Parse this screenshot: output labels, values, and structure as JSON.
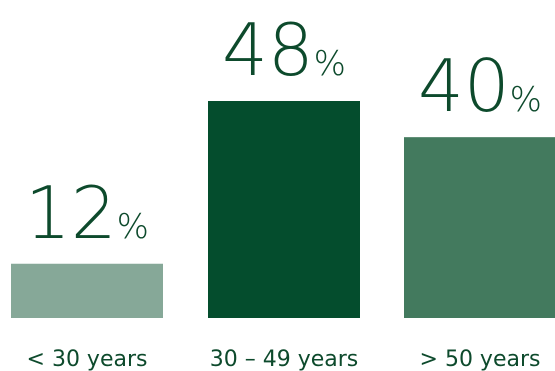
{
  "chart_data": {
    "type": "bar",
    "categories": [
      "< 30 years",
      "30 – 49 years",
      "> 50 years"
    ],
    "values": [
      12,
      48,
      40
    ],
    "value_labels": [
      "12",
      "48",
      "40"
    ],
    "unit_suffix": "%",
    "ylim": [
      0,
      48
    ],
    "colors": [
      "#86a898",
      "#044d2d",
      "#437a5e"
    ],
    "text_color": "#0d4a2c",
    "title": "",
    "xlabel": "",
    "ylabel": "",
    "grid": false,
    "legend": "none"
  }
}
